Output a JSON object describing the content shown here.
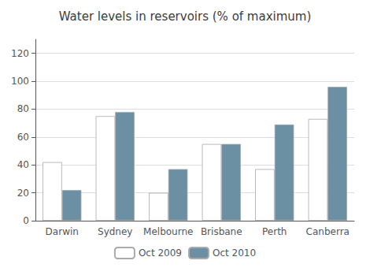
{
  "chart_data": {
    "type": "bar",
    "title": "Water levels in reservoirs (% of maximum)",
    "categories": [
      "Darwin",
      "Sydney",
      "Melbourne",
      "Brisbane",
      "Perth",
      "Canberra"
    ],
    "series": [
      {
        "name": "Oct 2009",
        "color": "#ffffff",
        "values": [
          42,
          75,
          20,
          55,
          37,
          73
        ]
      },
      {
        "name": "Oct 2010",
        "color": "#6b8fa3",
        "values": [
          22,
          78,
          37,
          55,
          69,
          96
        ]
      }
    ],
    "ylim": [
      0,
      130
    ],
    "yticks": [
      0,
      20,
      40,
      60,
      80,
      100,
      120
    ],
    "grid": true,
    "legend": "bottom"
  }
}
